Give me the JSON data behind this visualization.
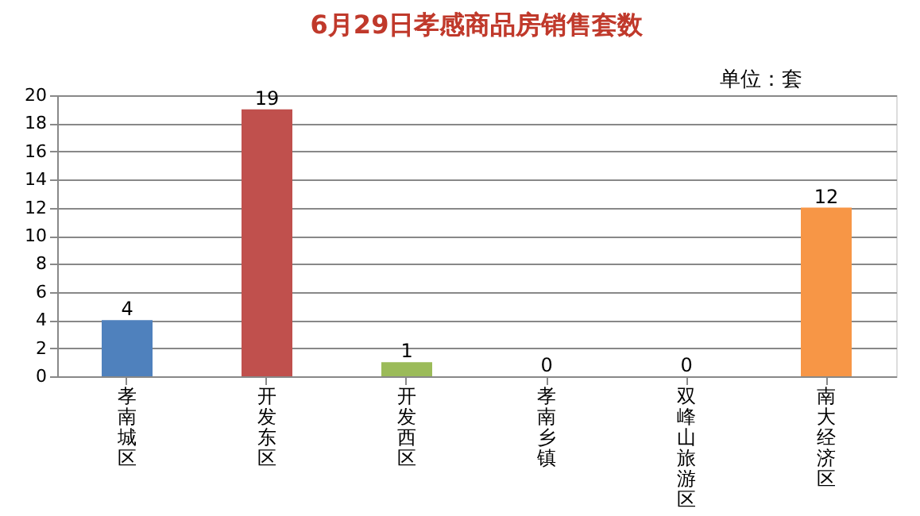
{
  "chart_data": {
    "type": "bar",
    "title": "6月29日孝感商品房销售套数",
    "annotations": [
      "单位：套"
    ],
    "categories": [
      "孝南城区",
      "开发东区",
      "开发西区",
      "孝南乡镇",
      "双峰山旅游区",
      "南大经济区"
    ],
    "values": [
      4,
      19,
      1,
      0,
      0,
      12
    ],
    "colors": [
      "#4f81bd",
      "#c0504d",
      "#9bbb59",
      "#8064a2",
      "#4bacc6",
      "#f79646"
    ],
    "ylim": [
      0,
      20
    ],
    "yticks": [
      0,
      2,
      4,
      6,
      8,
      10,
      12,
      14,
      16,
      18,
      20
    ],
    "grid": "y",
    "data_labels": true,
    "legend": false
  }
}
